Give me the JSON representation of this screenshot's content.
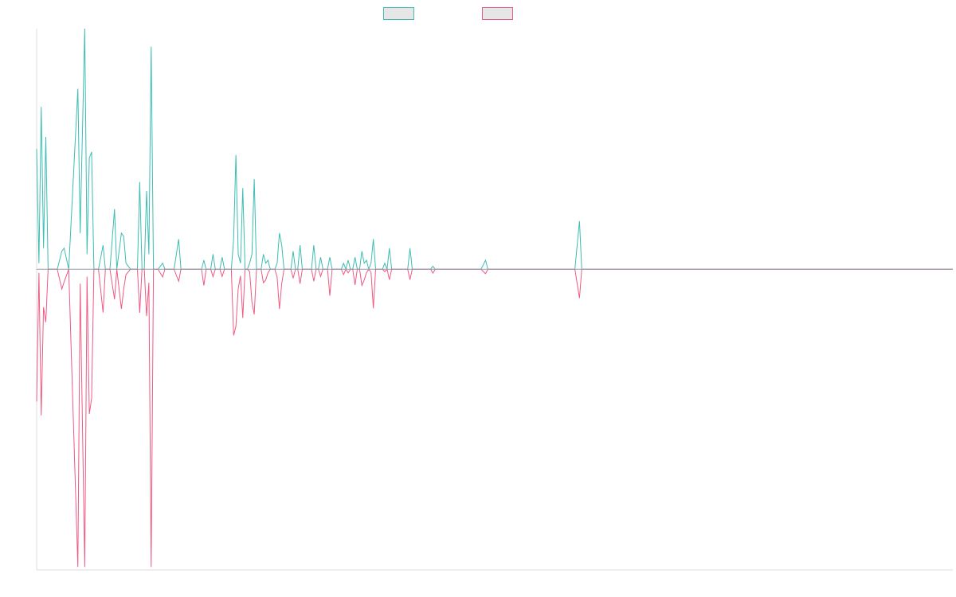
{
  "chart_data": {
    "type": "line",
    "title": "",
    "xlabel": "",
    "ylabel": "",
    "ylim": [
      -1.0,
      0.8
    ],
    "grid": false,
    "legend_position": "top-center",
    "colors": {
      "positive": "#3dbdb3",
      "negative": "#ef5a82",
      "axis": "#dddddd"
    },
    "series": [
      {
        "values": [
          [
            0,
            0.4
          ],
          [
            1,
            0.02
          ],
          [
            2,
            0.54
          ],
          [
            3,
            0.07
          ],
          [
            4,
            0.44
          ],
          [
            5,
            0.0
          ],
          [
            7,
            0.0
          ],
          [
            9,
            0.0
          ],
          [
            11,
            0.06
          ],
          [
            12,
            0.07
          ],
          [
            14,
            0.0
          ],
          [
            18,
            0.6
          ],
          [
            19,
            0.12
          ],
          [
            21,
            0.8
          ],
          [
            22,
            0.05
          ],
          [
            23,
            0.37
          ],
          [
            24,
            0.39
          ],
          [
            25,
            0.0
          ],
          [
            27,
            0.0
          ],
          [
            29,
            0.08
          ],
          [
            30,
            0.0
          ],
          [
            32,
            0.0
          ],
          [
            34,
            0.2
          ],
          [
            35,
            0.0
          ],
          [
            37,
            0.12
          ],
          [
            38,
            0.11
          ],
          [
            39,
            0.02
          ],
          [
            41,
            0.0
          ],
          [
            43,
            0.0
          ],
          [
            44,
            0.0
          ],
          [
            45,
            0.29
          ],
          [
            46,
            0.0
          ],
          [
            47,
            0.0
          ],
          [
            48,
            0.26
          ],
          [
            49,
            0.05
          ],
          [
            50,
            0.74
          ],
          [
            51,
            0.0
          ],
          [
            52,
            0.0
          ],
          [
            53,
            0.0
          ],
          [
            55,
            0.02
          ],
          [
            56,
            0.0
          ],
          [
            57,
            0.0
          ],
          [
            59,
            0.0
          ],
          [
            60,
            0.0
          ],
          [
            62,
            0.1
          ],
          [
            63,
            0.0
          ],
          [
            64,
            0.0
          ],
          [
            66,
            0.0
          ],
          [
            68,
            0.0
          ],
          [
            70,
            0.0
          ],
          [
            72,
            0.0
          ],
          [
            73,
            0.03
          ],
          [
            74,
            0.0
          ],
          [
            76,
            0.0
          ],
          [
            77,
            0.05
          ],
          [
            78,
            0.0
          ],
          [
            80,
            0.0
          ],
          [
            81,
            0.04
          ],
          [
            82,
            0.0
          ],
          [
            84,
            0.0
          ],
          [
            85,
            0.0
          ],
          [
            86,
            0.1
          ],
          [
            87,
            0.38
          ],
          [
            88,
            0.05
          ],
          [
            89,
            0.02
          ],
          [
            90,
            0.27
          ],
          [
            91,
            0.0
          ],
          [
            92,
            0.0
          ],
          [
            93,
            0.02
          ],
          [
            94,
            0.05
          ],
          [
            95,
            0.3
          ],
          [
            96,
            0.0
          ],
          [
            97,
            0.0
          ],
          [
            98,
            0.0
          ],
          [
            99,
            0.05
          ],
          [
            100,
            0.02
          ],
          [
            101,
            0.03
          ],
          [
            102,
            0.0
          ],
          [
            104,
            0.0
          ],
          [
            105,
            0.02
          ],
          [
            106,
            0.12
          ],
          [
            107,
            0.08
          ],
          [
            108,
            0.0
          ],
          [
            109,
            0.0
          ],
          [
            110,
            0.0
          ],
          [
            111,
            0.0
          ],
          [
            112,
            0.06
          ],
          [
            113,
            0.0
          ],
          [
            114,
            0.0
          ],
          [
            115,
            0.08
          ],
          [
            116,
            0.0
          ],
          [
            117,
            0.0
          ],
          [
            119,
            0.0
          ],
          [
            120,
            0.0
          ],
          [
            121,
            0.08
          ],
          [
            122,
            0.0
          ],
          [
            123,
            0.0
          ],
          [
            124,
            0.04
          ],
          [
            125,
            0.0
          ],
          [
            126,
            0.0
          ],
          [
            127,
            0.0
          ],
          [
            128,
            0.04
          ],
          [
            129,
            0.0
          ],
          [
            130,
            0.0
          ],
          [
            131,
            0.0
          ],
          [
            133,
            0.0
          ],
          [
            134,
            0.02
          ],
          [
            135,
            0.0
          ],
          [
            136,
            0.03
          ],
          [
            137,
            0.0
          ],
          [
            138,
            0.0
          ],
          [
            139,
            0.04
          ],
          [
            140,
            0.0
          ],
          [
            141,
            0.0
          ],
          [
            142,
            0.06
          ],
          [
            143,
            0.02
          ],
          [
            144,
            0.03
          ],
          [
            145,
            0.0
          ],
          [
            146,
            0.02
          ],
          [
            147,
            0.1
          ],
          [
            148,
            0.0
          ],
          [
            149,
            0.0
          ],
          [
            150,
            0.0
          ],
          [
            151,
            0.0
          ],
          [
            152,
            0.02
          ],
          [
            153,
            0.0
          ],
          [
            154,
            0.07
          ],
          [
            155,
            0.0
          ],
          [
            156,
            0.0
          ],
          [
            157,
            0.0
          ],
          [
            158,
            0.0
          ],
          [
            160,
            0.0
          ],
          [
            161,
            0.0
          ],
          [
            162,
            0.0
          ],
          [
            163,
            0.07
          ],
          [
            164,
            0.0
          ],
          [
            165,
            0.0
          ],
          [
            166,
            0.0
          ],
          [
            168,
            0.0
          ],
          [
            169,
            0.0
          ],
          [
            170,
            0.0
          ],
          [
            171,
            0.0
          ],
          [
            172,
            0.0
          ],
          [
            173,
            0.01
          ],
          [
            174,
            0.0
          ],
          [
            175,
            0.0
          ],
          [
            177,
            0.0
          ],
          [
            179,
            0.0
          ],
          [
            180,
            0.0
          ],
          [
            182,
            0.0
          ],
          [
            184,
            0.0
          ],
          [
            185,
            0.0
          ],
          [
            186,
            0.0
          ],
          [
            188,
            0.0
          ],
          [
            190,
            0.0
          ],
          [
            192,
            0.0
          ],
          [
            193,
            0.0
          ],
          [
            194,
            0.0
          ],
          [
            196,
            0.03
          ],
          [
            197,
            0.0
          ],
          [
            199,
            0.0
          ],
          [
            200,
            0.0
          ],
          [
            202,
            0.0
          ],
          [
            203,
            0.0
          ],
          [
            205,
            0.0
          ],
          [
            207,
            0.0
          ],
          [
            208,
            0.0
          ],
          [
            210,
            0.0
          ],
          [
            212,
            0.0
          ],
          [
            214,
            0.0
          ],
          [
            215,
            0.0
          ],
          [
            216,
            0.0
          ],
          [
            218,
            0.0
          ],
          [
            219,
            0.0
          ],
          [
            220,
            0.0
          ],
          [
            222,
            0.0
          ],
          [
            224,
            0.0
          ],
          [
            225,
            0.0
          ],
          [
            226,
            0.0
          ],
          [
            228,
            0.0
          ],
          [
            229,
            0.0
          ],
          [
            230,
            0.0
          ],
          [
            232,
            0.0
          ],
          [
            234,
            0.0
          ],
          [
            235,
            0.0
          ],
          [
            237,
            0.16
          ],
          [
            238,
            0.0
          ],
          [
            239,
            0.0
          ],
          [
            240,
            0.0
          ],
          [
            242,
            0.0
          ],
          [
            244,
            0.0
          ],
          [
            245,
            0.0
          ],
          [
            247,
            0.0
          ],
          [
            249,
            0.0
          ],
          [
            250,
            0.0
          ],
          [
            252,
            0.0
          ],
          [
            254,
            0.0
          ],
          [
            255,
            0.0
          ],
          [
            257,
            0.0
          ],
          [
            258,
            0.0
          ],
          [
            260,
            0.0
          ],
          [
            262,
            0.0
          ],
          [
            264,
            0.0
          ],
          [
            265,
            0.0
          ],
          [
            267,
            0.0
          ],
          [
            269,
            0.0
          ],
          [
            270,
            0.0
          ],
          [
            272,
            0.0
          ],
          [
            273,
            0.0
          ],
          [
            275,
            0.0
          ],
          [
            277,
            0.0
          ],
          [
            279,
            0.0
          ],
          [
            280,
            0.0
          ],
          [
            282,
            0.0
          ],
          [
            283,
            0.0
          ],
          [
            285,
            0.0
          ],
          [
            286,
            0.0
          ],
          [
            288,
            0.0
          ],
          [
            289,
            0.0
          ],
          [
            290,
            0.0
          ],
          [
            292,
            0.0
          ],
          [
            293,
            0.0
          ],
          [
            295,
            0.0
          ],
          [
            297,
            0.0
          ],
          [
            298,
            0.0
          ],
          [
            300,
            0.0
          ],
          [
            301,
            0.0
          ],
          [
            302,
            0.0
          ],
          [
            304,
            0.0
          ],
          [
            305,
            0.0
          ],
          [
            307,
            0.0
          ],
          [
            308,
            0.0
          ],
          [
            310,
            0.0
          ],
          [
            311,
            0.0
          ],
          [
            313,
            0.0
          ],
          [
            314,
            0.0
          ],
          [
            316,
            0.0
          ],
          [
            317,
            0.0
          ],
          [
            319,
            0.0
          ],
          [
            320,
            0.0
          ],
          [
            322,
            0.0
          ],
          [
            323,
            0.0
          ],
          [
            325,
            0.0
          ],
          [
            326,
            0.0
          ],
          [
            328,
            0.0
          ],
          [
            329,
            0.0
          ],
          [
            331,
            0.0
          ],
          [
            332,
            0.0
          ],
          [
            334,
            0.0
          ],
          [
            336,
            0.0
          ],
          [
            337,
            0.0
          ],
          [
            339,
            0.0
          ],
          [
            340,
            0.0
          ],
          [
            342,
            0.0
          ],
          [
            343,
            0.0
          ],
          [
            345,
            0.0
          ],
          [
            346,
            0.0
          ],
          [
            348,
            0.0
          ],
          [
            349,
            0.0
          ],
          [
            351,
            0.0
          ],
          [
            352,
            0.0
          ],
          [
            354,
            0.0
          ],
          [
            356,
            0.0
          ],
          [
            357,
            0.0
          ],
          [
            358,
            0.0
          ],
          [
            360,
            0.0
          ],
          [
            361,
            0.0
          ],
          [
            362,
            0.0
          ],
          [
            364,
            0.0
          ],
          [
            366,
            0.0
          ],
          [
            367,
            0.0
          ],
          [
            369,
            0.0
          ],
          [
            370,
            0.0
          ],
          [
            372,
            0.0
          ],
          [
            374,
            0.0
          ],
          [
            375,
            0.0
          ],
          [
            377,
            0.0
          ],
          [
            378,
            0.0
          ],
          [
            380,
            0.0
          ],
          [
            381,
            0.0
          ],
          [
            383,
            0.0
          ],
          [
            384,
            0.0
          ],
          [
            386,
            0.0
          ],
          [
            387,
            0.0
          ],
          [
            389,
            0.0
          ],
          [
            390,
            0.0
          ],
          [
            392,
            0.0
          ],
          [
            393,
            0.0
          ],
          [
            395,
            0.0
          ],
          [
            396,
            0.0
          ],
          [
            398,
            0.0
          ],
          [
            399,
            0.0
          ],
          [
            400,
            0.0
          ]
        ]
      }
    ]
  }
}
